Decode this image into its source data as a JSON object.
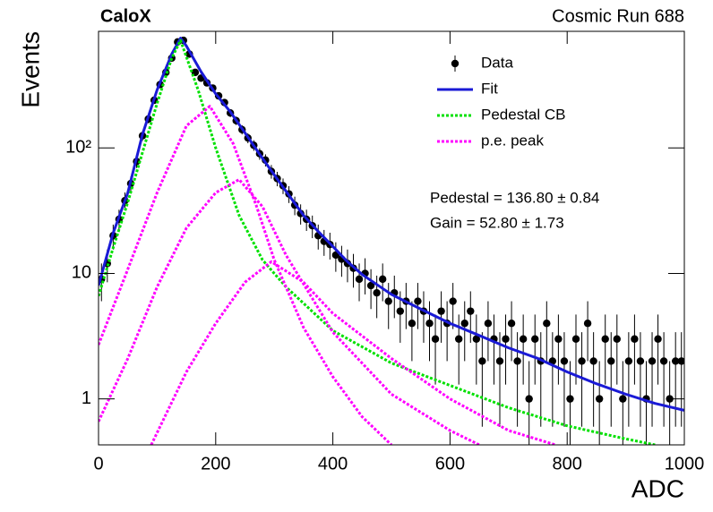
{
  "chart_data": {
    "type": "line",
    "title": "CaloX",
    "subtitle": "Cosmic Run 688",
    "x_label": "ADC",
    "y_label": "Events",
    "ylog": true,
    "xlim": [
      0,
      1000
    ],
    "ylim": [
      0.43,
      850
    ],
    "xticks": [
      0,
      200,
      400,
      600,
      800,
      1000
    ],
    "yticks": [
      1,
      10,
      {
        "value": 100,
        "label": "10²"
      }
    ],
    "legend": "top-right",
    "annotations": [
      "Pedestal = 136.80 ± 0.84",
      "Gain = 52.80 ± 1.73"
    ],
    "series": [
      {
        "name": "Data",
        "style": "points",
        "color": "#000000",
        "x": [
          5,
          15,
          25,
          35,
          45,
          55,
          65,
          75,
          85,
          95,
          105,
          115,
          125,
          135,
          145,
          155,
          165,
          175,
          185,
          195,
          205,
          215,
          225,
          235,
          245,
          255,
          265,
          275,
          285,
          295,
          305,
          315,
          325,
          335,
          345,
          355,
          365,
          375,
          385,
          395,
          405,
          415,
          425,
          435,
          445,
          455,
          465,
          475,
          485,
          495,
          505,
          515,
          525,
          535,
          545,
          555,
          565,
          575,
          585,
          595,
          605,
          615,
          625,
          635,
          645,
          655,
          665,
          675,
          685,
          695,
          705,
          715,
          725,
          735,
          745,
          755,
          765,
          775,
          785,
          795,
          805,
          815,
          825,
          835,
          845,
          855,
          865,
          875,
          885,
          895,
          905,
          915,
          925,
          935,
          945,
          955,
          965,
          975,
          985,
          995
        ],
        "values": [
          9,
          12,
          20,
          27,
          38,
          52,
          78,
          125,
          170,
          240,
          320,
          400,
          520,
          700,
          720,
          560,
          400,
          360,
          330,
          300,
          260,
          230,
          190,
          165,
          140,
          120,
          105,
          90,
          80,
          65,
          57,
          50,
          43,
          35,
          30,
          27,
          24,
          20,
          18,
          17,
          14,
          13,
          12,
          11,
          9,
          10,
          8,
          7,
          9,
          6,
          7,
          5,
          6,
          4,
          6,
          5,
          4,
          3,
          5,
          4,
          6,
          3,
          4,
          5,
          3,
          2,
          4,
          3,
          2,
          3,
          4,
          2,
          3,
          1,
          3,
          2,
          4,
          2,
          3,
          2,
          1,
          3,
          2,
          4,
          2,
          1,
          3,
          2,
          3,
          1,
          2,
          3,
          2,
          1,
          2,
          3,
          2,
          1,
          2,
          2
        ],
        "errors": [
          3,
          3.5,
          4.5,
          5.2,
          6.2,
          7.2,
          8.8,
          11.2,
          13,
          15.5,
          17.9,
          20,
          22.8,
          26.5,
          26.8,
          23.7,
          20,
          19,
          18.2,
          17.3,
          16.1,
          15.2,
          13.8,
          12.8,
          11.8,
          11,
          10.2,
          9.5,
          8.9,
          8.1,
          7.5,
          7.1,
          6.6,
          5.9,
          5.5,
          5.2,
          4.9,
          4.5,
          4.2,
          4.1,
          3.7,
          3.6,
          3.5,
          3.3,
          3,
          3.2,
          2.8,
          2.6,
          3,
          2.4,
          2.6,
          2.2,
          2.4,
          2,
          2.4,
          2.2,
          2,
          1.7,
          2.2,
          2,
          2.4,
          1.7,
          2,
          2.2,
          1.7,
          1.4,
          2,
          1.7,
          1.4,
          1.7,
          2,
          1.4,
          1.7,
          1,
          1.7,
          1.4,
          2,
          1.4,
          1.7,
          1.4,
          1,
          1.7,
          1.4,
          2,
          1.4,
          1,
          1.7,
          1.4,
          1.7,
          1,
          1.4,
          1.7,
          1.4,
          1,
          1.4,
          1.7,
          1.4,
          1,
          1.4,
          1.4
        ]
      },
      {
        "name": "Fit",
        "style": "solid",
        "color": "#1a1ad6",
        "x": [
          0,
          25,
          50,
          75,
          100,
          125,
          140,
          150,
          175,
          200,
          225,
          250,
          275,
          300,
          325,
          350,
          375,
          400,
          425,
          450,
          500,
          550,
          600,
          650,
          700,
          750,
          800,
          850,
          900,
          950,
          1000
        ],
        "values": [
          8,
          21,
          44,
          128,
          290,
          560,
          750,
          650,
          405,
          270,
          194,
          132,
          89,
          61,
          42,
          29,
          21.6,
          16.4,
          12.4,
          9.8,
          6.8,
          5.2,
          4,
          3.2,
          2.55,
          2.1,
          1.64,
          1.32,
          1.09,
          0.92,
          0.81
        ]
      },
      {
        "name": "Pedestal CB",
        "style": "dotted",
        "color": "#00e000",
        "x": [
          0,
          25,
          50,
          75,
          100,
          125,
          140,
          170,
          200,
          240,
          280,
          320,
          400,
          500,
          600,
          700,
          800,
          900,
          950
        ],
        "values": [
          6.6,
          16,
          37,
          92,
          227,
          520,
          720,
          290,
          100,
          29,
          12.8,
          7.8,
          3.5,
          1.93,
          1.28,
          0.85,
          0.61,
          0.48,
          0.43
        ]
      },
      {
        "name": "p.e. peak",
        "style": "dotted",
        "color": "#ff00ff",
        "x": [
          0,
          50,
          100,
          150,
          190,
          230,
          270,
          300,
          350,
          400,
          450,
          500
        ],
        "values": [
          2.7,
          10.8,
          44,
          150,
          215,
          108,
          34,
          12.8,
          3.7,
          1.5,
          0.72,
          0.43
        ]
      },
      {
        "style": "dotted",
        "color": "#ff00ff",
        "x": [
          0,
          50,
          100,
          150,
          200,
          240,
          280,
          320,
          400,
          500,
          600,
          650
        ],
        "values": [
          0.66,
          2.1,
          7.8,
          23,
          44,
          56,
          34,
          14,
          3.4,
          1.09,
          0.56,
          0.43
        ]
      },
      {
        "style": "dotted",
        "color": "#ff00ff",
        "x": [
          90,
          150,
          200,
          250,
          295,
          350,
          400,
          500,
          600,
          700,
          780
        ],
        "values": [
          0.43,
          1.64,
          4,
          8.5,
          12.4,
          8.5,
          4.8,
          2.1,
          1,
          0.56,
          0.43
        ]
      }
    ]
  }
}
